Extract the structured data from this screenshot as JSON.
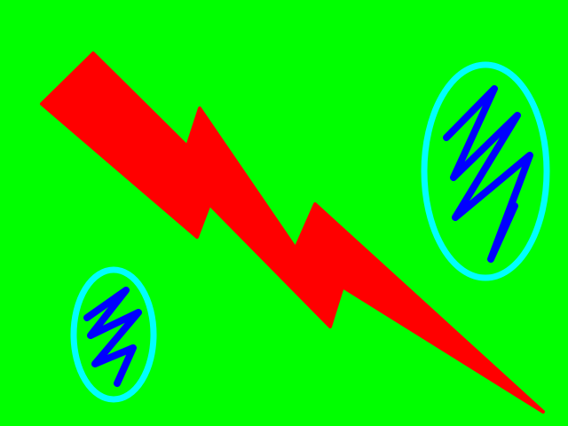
{
  "colors": {
    "background": "#00ff00",
    "bolt": "#ff0000",
    "ellipse_ring": "#00ffff",
    "zigzag": "#0000ff"
  },
  "shapes": [
    {
      "kind": "lightning-bolt",
      "color": "bolt"
    },
    {
      "kind": "ring-with-zigzag",
      "ring_color": "ellipse_ring",
      "zigzag_color": "zigzag"
    },
    {
      "kind": "ring-with-zigzag",
      "ring_color": "ellipse_ring",
      "zigzag_color": "zigzag"
    }
  ]
}
